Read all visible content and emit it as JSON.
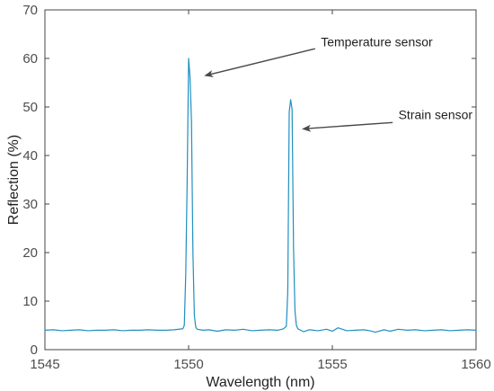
{
  "chart_data": {
    "type": "line",
    "title": "",
    "xlabel": "Wavelength (nm)",
    "ylabel": "Reflection (%)",
    "xlim": [
      1545,
      1560
    ],
    "ylim": [
      0,
      70
    ],
    "xticks": [
      1545,
      1550,
      1555,
      1560
    ],
    "yticks": [
      0,
      10,
      20,
      30,
      40,
      50,
      60,
      70
    ],
    "xtick_labels": [
      "1545",
      "1550",
      "1555",
      "1560"
    ],
    "ytick_labels": [
      "0",
      "10",
      "20",
      "30",
      "40",
      "50",
      "60",
      "70"
    ],
    "grid": false,
    "legend": "none",
    "colors": {
      "series": "#1f8fbf",
      "axis": "#444444",
      "arrow": "#4a4a4a"
    },
    "series": [
      {
        "x": [
          1545.0,
          1545.3,
          1545.6,
          1545.9,
          1546.2,
          1546.5,
          1546.8,
          1547.1,
          1547.4,
          1547.7,
          1548.0,
          1548.3,
          1548.6,
          1548.9,
          1549.2,
          1549.5,
          1549.8,
          1549.85,
          1549.9,
          1549.95,
          1550.0,
          1550.05,
          1550.1,
          1550.15,
          1550.2,
          1550.25,
          1550.3,
          1550.5,
          1550.7,
          1551.0,
          1551.3,
          1551.6,
          1551.9,
          1552.2,
          1552.5,
          1552.8,
          1553.1,
          1553.3,
          1553.4,
          1553.45,
          1553.5,
          1553.55,
          1553.6,
          1553.65,
          1553.7,
          1553.75,
          1553.8,
          1553.9,
          1554.0,
          1554.2,
          1554.5,
          1554.8,
          1555.0,
          1555.2,
          1555.5,
          1555.8,
          1556.1,
          1556.3,
          1556.5,
          1556.8,
          1557.0,
          1557.3,
          1557.6,
          1557.9,
          1558.2,
          1558.5,
          1558.8,
          1559.1,
          1559.4,
          1559.7,
          1560.0
        ],
        "y": [
          4.0,
          4.1,
          3.9,
          4.0,
          4.1,
          3.9,
          4.0,
          4.0,
          4.1,
          3.9,
          4.0,
          4.0,
          4.1,
          4.0,
          4.0,
          4.1,
          4.3,
          5.0,
          15.5,
          35.0,
          60.0,
          56.0,
          47.0,
          20.0,
          7.0,
          4.6,
          4.2,
          4.0,
          4.1,
          3.8,
          4.1,
          4.0,
          4.2,
          3.9,
          4.0,
          4.1,
          4.0,
          4.3,
          4.8,
          12.0,
          49.0,
          51.5,
          49.5,
          21.0,
          8.0,
          5.0,
          4.3,
          4.0,
          3.7,
          4.1,
          3.9,
          4.2,
          3.8,
          4.5,
          3.9,
          4.0,
          4.1,
          3.9,
          3.6,
          4.1,
          3.8,
          4.2,
          4.0,
          4.1,
          3.9,
          4.0,
          4.1,
          3.9,
          4.0,
          4.1,
          4.0
        ]
      }
    ],
    "annotations": [
      {
        "text": "Temperature sensor",
        "text_x": 1554.6,
        "text_y": 62.5,
        "arrow_from_x": 1554.4,
        "arrow_from_y": 62.0,
        "arrow_to_x": 1550.6,
        "arrow_to_y": 56.5
      },
      {
        "text": "Strain sensor",
        "text_x": 1557.3,
        "text_y": 47.5,
        "arrow_from_x": 1557.1,
        "arrow_from_y": 46.8,
        "arrow_to_x": 1554.0,
        "arrow_to_y": 45.5
      }
    ]
  }
}
